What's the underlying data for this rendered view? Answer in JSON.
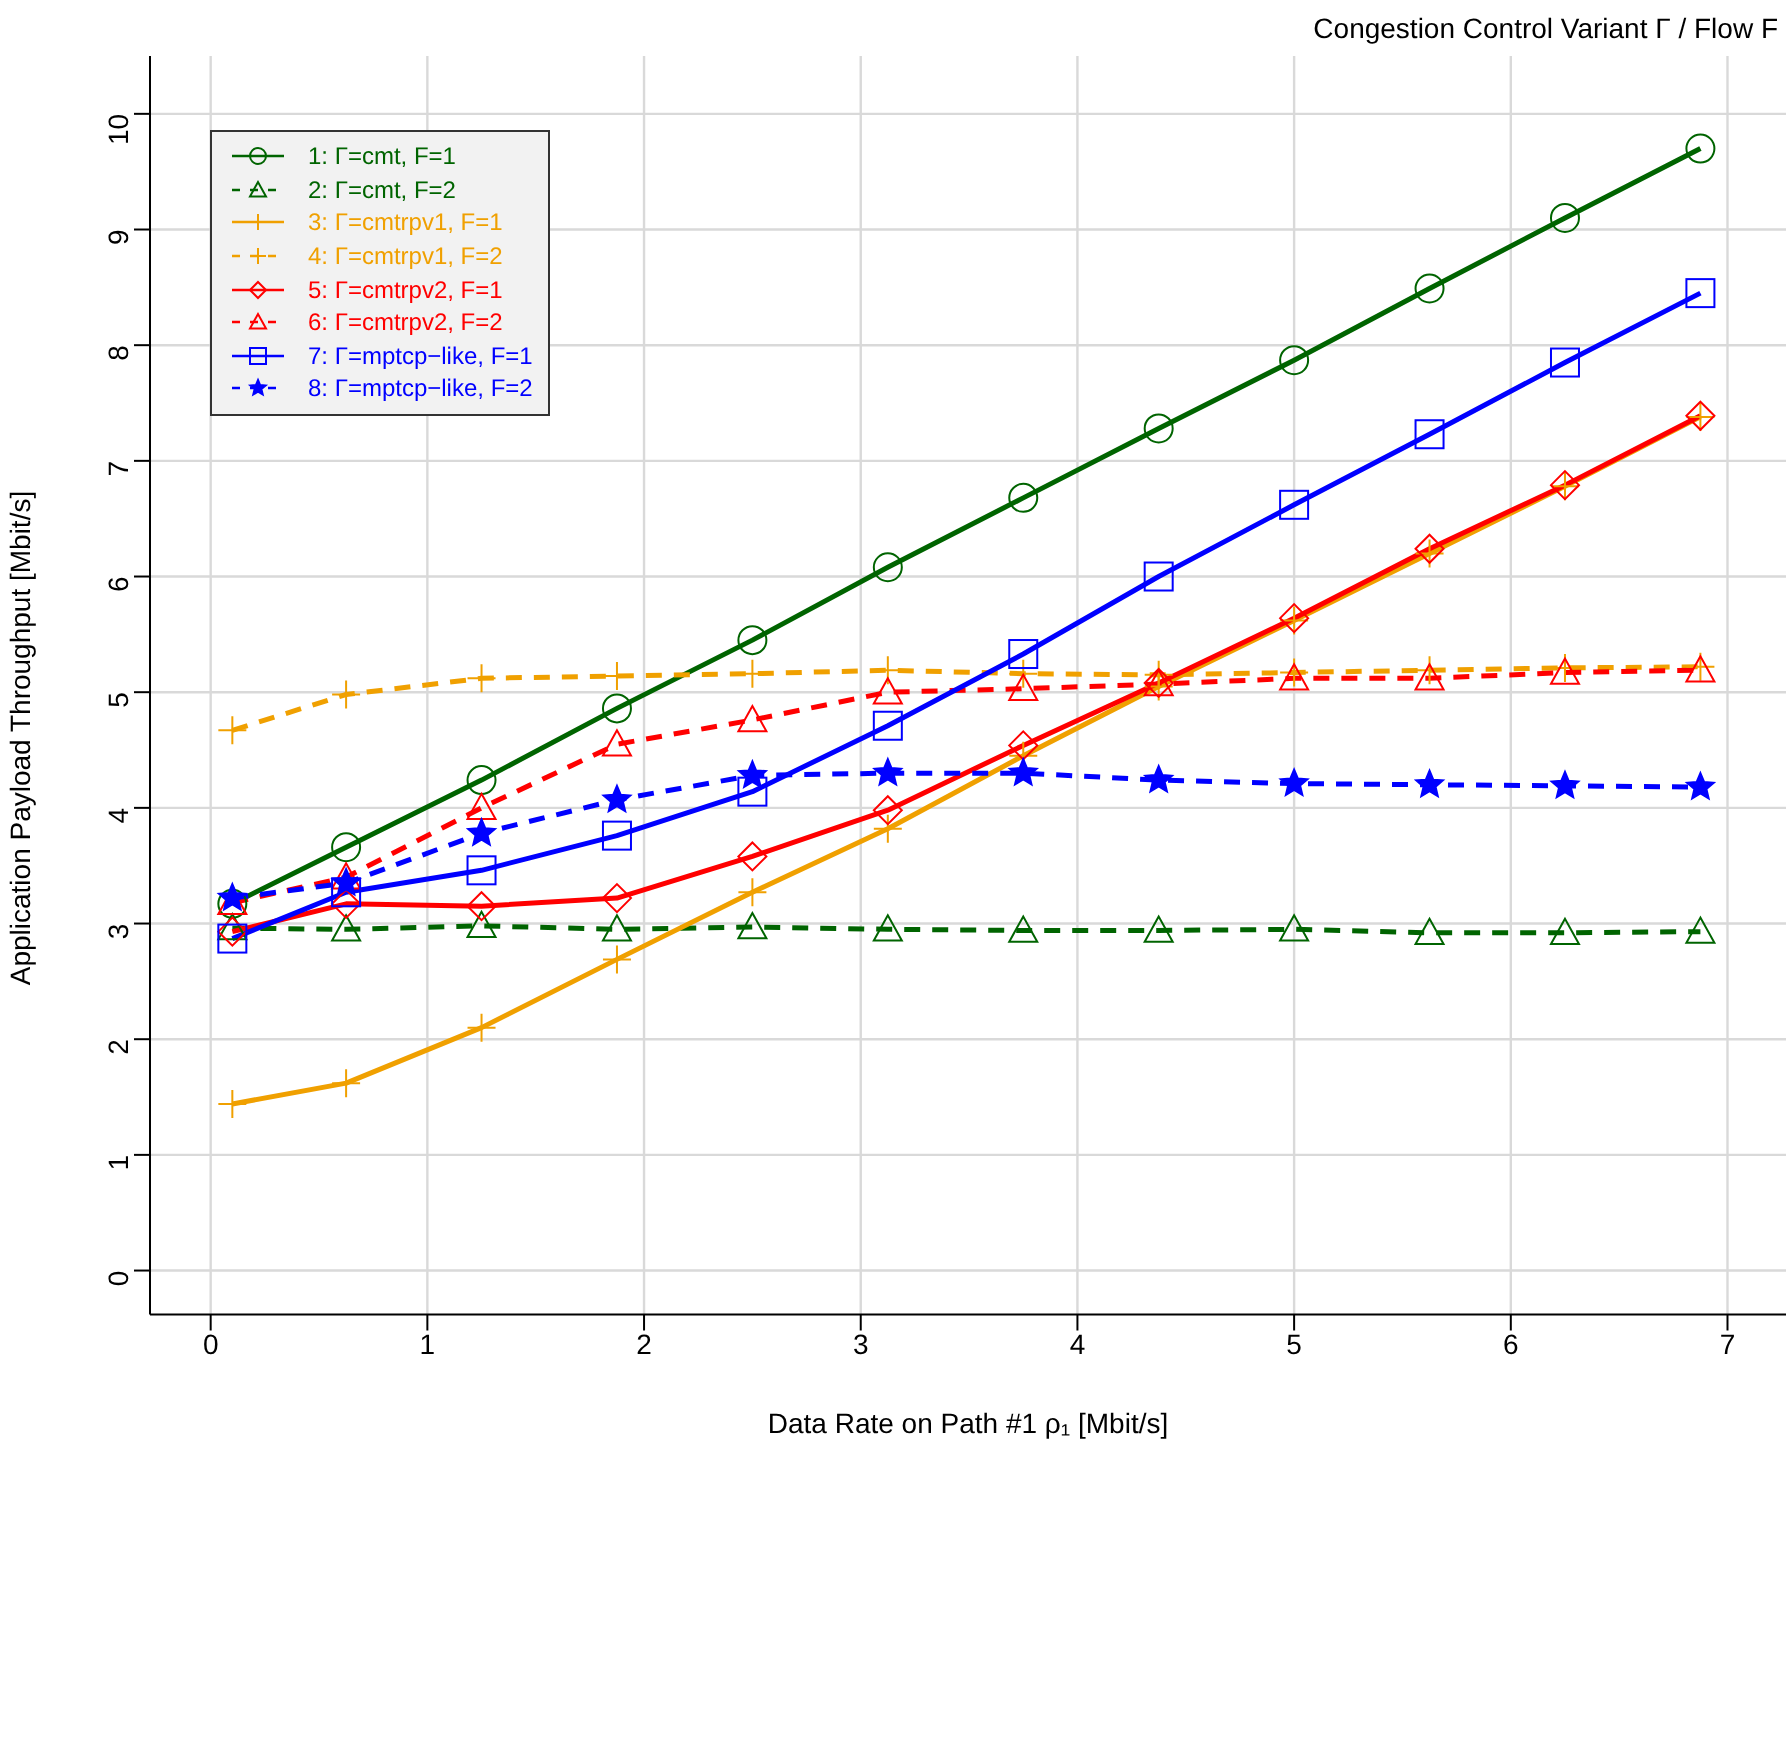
{
  "chart_data": {
    "type": "line",
    "title": "Congestion Control Variant Γ / Flow F",
    "xlabel": "Data Rate on Path #1 ρ₁ [Mbit/s]",
    "ylabel": "Application Payload Throughput [Mbit/s]",
    "x": [
      0.1,
      0.625,
      1.25,
      1.875,
      2.5,
      3.125,
      3.75,
      4.375,
      5,
      5.625,
      6.25,
      6.875
    ],
    "series": [
      {
        "name": "1: Γ=cmt, F=1",
        "color": "#006400",
        "marker": "circle",
        "line_style": "solid",
        "values": [
          3.17,
          3.66,
          4.24,
          4.86,
          5.45,
          6.08,
          6.68,
          7.28,
          7.87,
          8.49,
          9.1,
          9.7
        ]
      },
      {
        "name": "2: Γ=cmt, F=2",
        "color": "#006400",
        "marker": "triangle",
        "line_style": "dashed",
        "values": [
          2.96,
          2.95,
          2.98,
          2.95,
          2.97,
          2.95,
          2.94,
          2.94,
          2.95,
          2.92,
          2.92,
          2.93
        ]
      },
      {
        "name": "3: Γ=cmtrpv1, F=1",
        "color": "#f0a000",
        "marker": "cross",
        "line_style": "solid",
        "values": [
          1.44,
          1.62,
          2.1,
          2.69,
          3.27,
          3.82,
          4.45,
          5.05,
          5.62,
          6.2,
          6.78,
          7.38
        ]
      },
      {
        "name": "4: Γ=cmtrpv1, F=2",
        "color": "#f0a000",
        "marker": "cross",
        "line_style": "dashed",
        "values": [
          4.67,
          4.98,
          5.12,
          5.14,
          5.16,
          5.19,
          5.16,
          5.15,
          5.17,
          5.19,
          5.21,
          5.22
        ]
      },
      {
        "name": "5: Γ=cmtrpv2, F=1",
        "color": "#ff0000",
        "marker": "diamond",
        "line_style": "solid",
        "values": [
          2.93,
          3.17,
          3.15,
          3.22,
          3.58,
          3.98,
          4.54,
          5.08,
          5.64,
          6.24,
          6.79,
          7.39
        ]
      },
      {
        "name": "6: Γ=cmtrpv2, F=2",
        "color": "#ff0000",
        "marker": "triangle",
        "line_style": "dashed",
        "values": [
          3.18,
          3.4,
          4.0,
          4.55,
          4.76,
          5.0,
          5.03,
          5.07,
          5.12,
          5.12,
          5.17,
          5.19
        ]
      },
      {
        "name": "7: Γ=mptcp−like, F=1",
        "color": "#0000ff",
        "marker": "square",
        "line_style": "solid",
        "values": [
          2.87,
          3.27,
          3.46,
          3.76,
          4.14,
          4.71,
          5.33,
          6.0,
          6.62,
          7.23,
          7.85,
          8.45
        ]
      },
      {
        "name": "8: Γ=mptcp−like, F=2",
        "color": "#0000ff",
        "marker": "star",
        "line_style": "dashed",
        "values": [
          3.22,
          3.35,
          3.78,
          4.07,
          4.28,
          4.3,
          4.3,
          4.24,
          4.21,
          4.2,
          4.19,
          4.18
        ]
      }
    ],
    "xlim": [
      -0.28,
      7.27
    ],
    "xticks": [
      0,
      1,
      2,
      3,
      4,
      5,
      6,
      7
    ],
    "ylim": [
      -0.38,
      10.5
    ],
    "yticks": [
      0,
      1,
      2,
      3,
      4,
      5,
      6,
      7,
      8,
      9,
      10
    ],
    "grid": true,
    "legend": "top left"
  }
}
